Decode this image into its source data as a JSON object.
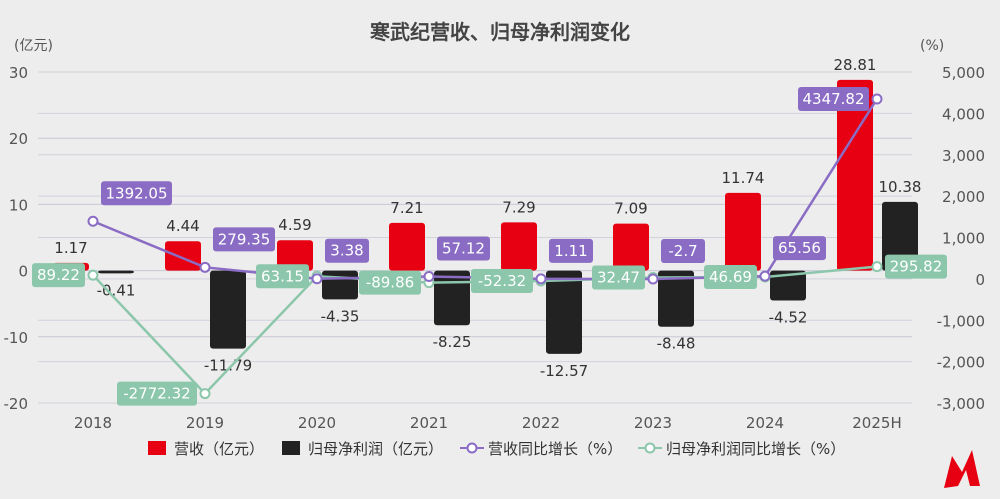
{
  "chart_data": {
    "type": "bar+line",
    "title": "寒武纪营收、归母净利润变化",
    "ylabel_left": "(亿元)",
    "ylabel_right": "(%)",
    "categories": [
      "2018",
      "2019",
      "2020",
      "2021",
      "2022",
      "2023",
      "2024",
      "2025H"
    ],
    "ylim_left": [
      -20,
      30
    ],
    "yticks_left": [
      -20,
      -10,
      0,
      10,
      20,
      30
    ],
    "ylim_right": [
      -3000,
      5000
    ],
    "yticks_right": [
      "-3,000",
      "-2,000",
      "-1,000",
      "0",
      "1,000",
      "2,000",
      "3,000",
      "4,000",
      "5,000"
    ],
    "yticks_right_values": [
      -3000,
      -2000,
      -1000,
      0,
      1000,
      2000,
      3000,
      4000,
      5000
    ],
    "grid": true,
    "legend_placement": "bottom",
    "series": [
      {
        "name": "营收（亿元）",
        "type": "bar",
        "axis": "left",
        "color": "#e60012",
        "values": [
          1.17,
          4.44,
          4.59,
          7.21,
          7.29,
          7.09,
          11.74,
          28.81
        ]
      },
      {
        "name": "归母净利润（亿元）",
        "type": "bar",
        "axis": "left",
        "color": "#222222",
        "values": [
          -0.41,
          -11.79,
          -4.35,
          -8.25,
          -12.57,
          -8.48,
          -4.52,
          10.38
        ]
      },
      {
        "name": "营收同比增长（%）",
        "type": "line",
        "axis": "right",
        "color": "#8a6cc4",
        "values": [
          1392.05,
          279.35,
          3.38,
          57.12,
          1.11,
          -2.7,
          65.56,
          4347.82
        ]
      },
      {
        "name": "归母净利润同比增长（%）",
        "type": "line",
        "axis": "right",
        "color": "#8cc7ac",
        "values": [
          89.22,
          -2772.32,
          63.15,
          -89.86,
          -52.32,
          32.47,
          46.69,
          295.82
        ]
      }
    ]
  }
}
